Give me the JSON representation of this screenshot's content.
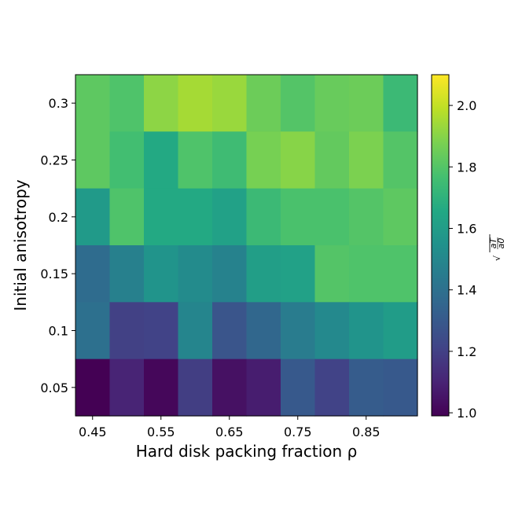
{
  "chart_data": {
    "type": "heatmap",
    "title": "",
    "xlabel": "Hard disk packing fraction ρ",
    "ylabel": "Initial anisotropy",
    "x_tick_labels": [
      "0.45",
      "0.55",
      "0.65",
      "0.75",
      "0.85"
    ],
    "y_tick_labels": [
      "0.05",
      "0.1",
      "0.15",
      "0.2",
      "0.25",
      "0.3"
    ],
    "x_values": [
      0.45,
      0.5,
      0.55,
      0.6,
      0.65,
      0.7,
      0.75,
      0.8,
      0.85,
      0.9
    ],
    "y_values": [
      0.05,
      0.1,
      0.15,
      0.2,
      0.25,
      0.3
    ],
    "xlim": [
      0.425,
      0.925
    ],
    "ylim": [
      0.025,
      0.325
    ],
    "colormap": "viridis",
    "colorbar": {
      "label_parts": {
        "radical": "√",
        "numerator": "a_T",
        "denominator": "a_0"
      },
      "range": [
        0.99,
        2.1
      ],
      "tick_labels": [
        "1.0",
        "1.2",
        "1.4",
        "1.6",
        "1.8",
        "2.0"
      ]
    },
    "rows": [
      {
        "y": 0.3,
        "values": [
          1.82,
          1.79,
          1.91,
          1.95,
          1.93,
          1.85,
          1.8,
          1.84,
          1.85,
          1.74
        ]
      },
      {
        "y": 0.25,
        "values": [
          1.82,
          1.76,
          1.66,
          1.79,
          1.75,
          1.87,
          1.9,
          1.83,
          1.88,
          1.8
        ]
      },
      {
        "y": 0.2,
        "values": [
          1.59,
          1.79,
          1.66,
          1.66,
          1.62,
          1.74,
          1.78,
          1.78,
          1.8,
          1.82
        ]
      },
      {
        "y": 0.15,
        "values": [
          1.38,
          1.47,
          1.56,
          1.52,
          1.48,
          1.61,
          1.62,
          1.8,
          1.79,
          1.79
        ]
      },
      {
        "y": 0.1,
        "values": [
          1.4,
          1.2,
          1.21,
          1.49,
          1.28,
          1.36,
          1.45,
          1.51,
          1.56,
          1.6
        ]
      },
      {
        "y": 0.05,
        "values": [
          0.99,
          1.1,
          1.01,
          1.19,
          1.04,
          1.08,
          1.3,
          1.21,
          1.31,
          1.3
        ]
      }
    ]
  }
}
